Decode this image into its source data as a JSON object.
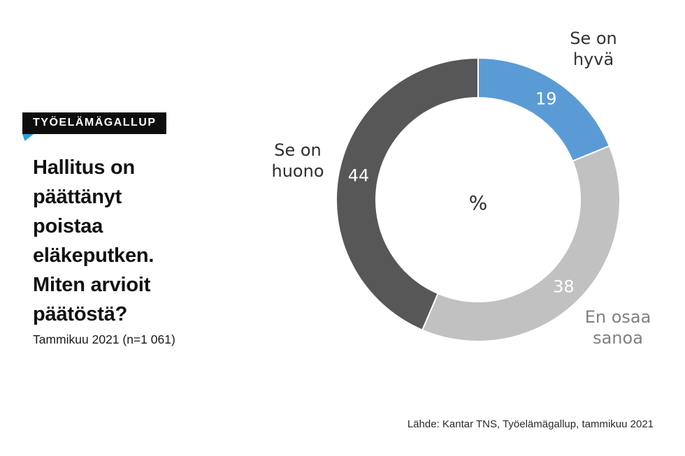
{
  "badge": {
    "label": "TYÖELÄMÄGALLUP"
  },
  "headline": {
    "title_lines": "Hallitus on\npäättänyt\npoistaa\neläkeputken.\nMiten arvioit\npäätöstä?",
    "subtitle": "Tammikuu 2021 (n=1 061)"
  },
  "source": "Lähde: Kantar TNS, Työelämägallup, tammikuu 2021",
  "colors": {
    "badge_bg": "#0d0d0d",
    "badge_tail_blue": "#2aa0d8",
    "headline_text": "#111111"
  },
  "chart_data": {
    "type": "pie",
    "subtype": "donut",
    "title": "Hallitus on päättänyt poistaa eläkeputken. Miten arvioit päätöstä?",
    "unit": "%",
    "center_label": "%",
    "start_angle_deg": 0,
    "direction": "clockwise",
    "legend_position": "outside-labels",
    "value_label_color": "#ffffff",
    "segments": [
      {
        "label": "Se on hyvä",
        "label_lines": "Se on\nhyvä",
        "value": 19,
        "color": "#5b9bd5",
        "label_color": "#333333"
      },
      {
        "label": "En osaa sanoa",
        "label_lines": "En osaa\nsanoa",
        "value": 38,
        "color": "#c1c1c1",
        "label_color": "#808080"
      },
      {
        "label": "Se on huono",
        "label_lines": "Se on\nhuono",
        "value": 44,
        "color": "#575757",
        "label_color": "#2e2e2e"
      }
    ]
  }
}
